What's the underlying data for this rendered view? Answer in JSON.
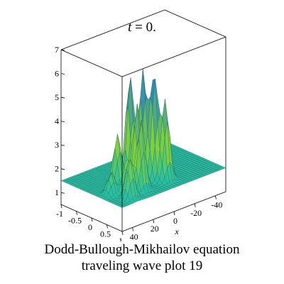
{
  "title": {
    "var": "t",
    "rest": " = 0."
  },
  "chart_data": {
    "type": "surface3d",
    "title": "t = 0.",
    "xlabel": "x",
    "ylabel": "",
    "zlabel": "",
    "x_ticks": [
      "-40",
      "-20",
      "0",
      "20",
      "40"
    ],
    "y_ticks": [
      "-1",
      "-0.5",
      "0",
      "0.5",
      "1"
    ],
    "z_ticks": [
      "1",
      "2",
      "3",
      "4",
      "5",
      "6",
      "7"
    ],
    "xlim": [
      -50,
      50
    ],
    "ylim": [
      -1,
      1
    ],
    "zlim": [
      0.5,
      7
    ],
    "baseline_z": 1.5,
    "peaks": [
      {
        "x": 10,
        "y": -0.1,
        "z": 5.8
      },
      {
        "x": 5,
        "y": 0.15,
        "z": 6.0
      },
      {
        "x": 0,
        "y": 0.35,
        "z": 5.9
      },
      {
        "x": -5,
        "y": 0.55,
        "z": 4.8
      },
      {
        "x": 15,
        "y": 0.3,
        "z": 4.9
      },
      {
        "x": 20,
        "y": 0.6,
        "z": 4.5
      },
      {
        "x": 25,
        "y": 0.0,
        "z": 3.6
      },
      {
        "x": 30,
        "y": 0.5,
        "z": 3.0
      },
      {
        "x": 35,
        "y": 0.75,
        "z": 3.2
      },
      {
        "x": -10,
        "y": 0.2,
        "z": 3.1
      },
      {
        "x": 40,
        "y": 0.3,
        "z": 2.4
      }
    ],
    "colors": {
      "flat": "#27bfa4",
      "high": "#1f7fd0",
      "mid": "#7fd23d",
      "low": "#8d4fb0"
    }
  },
  "caption": {
    "line1": "Dodd-Bullough-Mikhailov equation",
    "line2": "traveling wave plot 19"
  }
}
